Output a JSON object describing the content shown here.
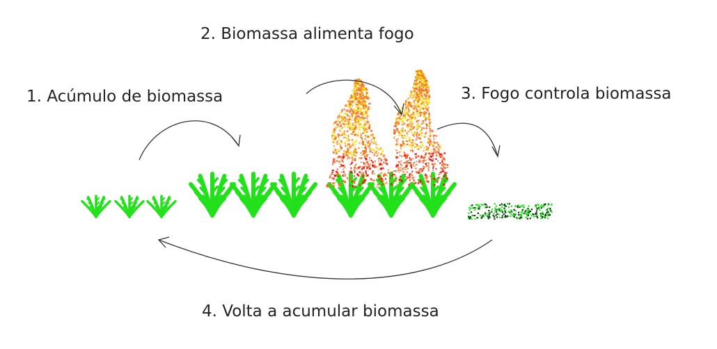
{
  "steps": [
    {
      "label": "1. Acúmulo de biomassa"
    },
    {
      "label": "2. Biomassa alimenta fogo"
    },
    {
      "label": "3. Fogo controla biomassa"
    },
    {
      "label": "4. Volta a acumular biomassa"
    }
  ],
  "colors": {
    "grass": "#22e01a",
    "grass_dark": "#0a3d0a",
    "flame_red": "#e01010",
    "flame_orange": "#f07020",
    "flame_yellow": "#f8e010",
    "arrow": "#333333"
  },
  "icons": {
    "small_grass": "small-grass-icon",
    "tall_grass": "tall-grass-icon",
    "fire": "fire-icon",
    "burnt_grass": "burnt-grass-icon"
  }
}
